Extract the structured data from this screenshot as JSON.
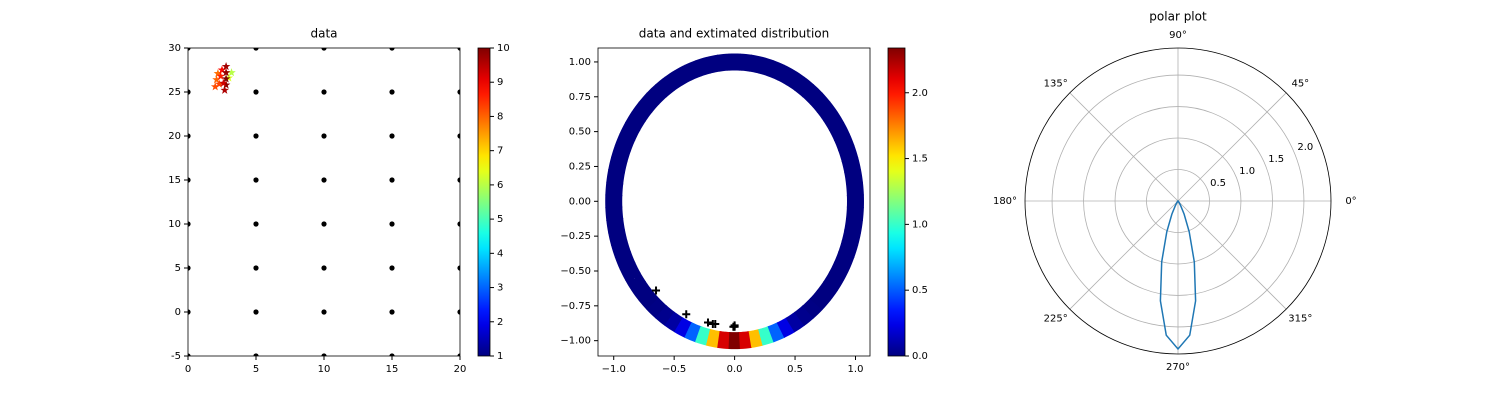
{
  "chart_data": [
    {
      "type": "scatter",
      "title": "data",
      "xlim": [
        0,
        20
      ],
      "ylim": [
        -5,
        30
      ],
      "xticks": [
        0,
        5,
        10,
        15,
        20
      ],
      "yticks": [
        -5,
        0,
        5,
        10,
        15,
        20,
        25,
        30
      ],
      "series": [
        {
          "color": "#000000",
          "marker": "dot",
          "x": [
            0,
            0,
            0,
            0,
            0,
            0,
            0,
            0,
            5,
            5,
            5,
            5,
            5,
            5,
            5,
            5,
            10,
            10,
            10,
            10,
            10,
            10,
            10,
            10,
            15,
            15,
            15,
            15,
            15,
            15,
            15,
            15,
            20,
            20,
            20,
            20,
            20,
            20,
            20,
            20
          ],
          "y": [
            -5,
            0,
            5,
            10,
            15,
            20,
            25,
            30,
            -5,
            0,
            5,
            10,
            15,
            20,
            25,
            30,
            -5,
            0,
            5,
            10,
            15,
            20,
            25,
            30,
            -5,
            0,
            5,
            10,
            15,
            20,
            25,
            30,
            -5,
            0,
            5,
            10,
            15,
            20,
            25,
            30
          ]
        },
        {
          "marker": "star",
          "x": [
            2.0,
            2.1,
            2.2,
            2.3,
            2.4,
            2.5,
            3.2,
            3.0,
            2.7,
            2.8,
            2.8,
            2.8,
            2.8,
            2.6
          ],
          "y": [
            25.6,
            26.4,
            27.1,
            25.9,
            26.8,
            27.5,
            27.2,
            26.6,
            25.2,
            25.8,
            26.5,
            27.2,
            27.9,
            26.0
          ],
          "c": [
            8.2,
            8.0,
            7.9,
            8.3,
            8.6,
            8.8,
            6.0,
            6.3,
            9.6,
            9.9,
            10.0,
            9.8,
            9.7,
            9.3
          ]
        }
      ],
      "colorbar": {
        "colormap": "jet",
        "lim": [
          1,
          10
        ],
        "ticks": [
          1,
          2,
          3,
          4,
          5,
          6,
          7,
          8,
          9,
          10
        ]
      }
    },
    {
      "type": "ring",
      "title": "data and extimated distribution",
      "xlim": [
        -1.13,
        1.12
      ],
      "ylim": [
        -1.11,
        1.1
      ],
      "xticks": [
        {
          "value": -1,
          "label": "−1.0"
        },
        {
          "value": -0.5,
          "label": "−0.5"
        },
        {
          "value": 0,
          "label": "0.0"
        },
        {
          "value": 0.5,
          "label": "0.5"
        },
        {
          "value": 1,
          "label": "1.0"
        }
      ],
      "yticks": [
        {
          "value": -1,
          "label": "−1.00"
        },
        {
          "value": -0.75,
          "label": "−0.75"
        },
        {
          "value": -0.5,
          "label": "−0.50"
        },
        {
          "value": -0.25,
          "label": "−0.25"
        },
        {
          "value": 0,
          "label": "0.00"
        },
        {
          "value": 0.25,
          "label": "0.25"
        },
        {
          "value": 0.5,
          "label": "0.50"
        },
        {
          "value": 0.75,
          "label": "0.75"
        },
        {
          "value": 1,
          "label": "1.00"
        }
      ],
      "ring": {
        "radius": 1,
        "theta": [
          0,
          5,
          10,
          15,
          20,
          25,
          30,
          35,
          40,
          45,
          50,
          55,
          60,
          65,
          70,
          75,
          80,
          85,
          90,
          95,
          100,
          105,
          110,
          115,
          120,
          125,
          130,
          135,
          140,
          145,
          150,
          155,
          160,
          165,
          170,
          175,
          180,
          185,
          190,
          195,
          200,
          205,
          210,
          215,
          220,
          225,
          230,
          235,
          240,
          245,
          250,
          255,
          260,
          265,
          270,
          275,
          280,
          285,
          290,
          295,
          300,
          305,
          310,
          315,
          320,
          325,
          330,
          335,
          340,
          345,
          350,
          355
        ],
        "density": [
          0,
          0,
          0,
          0,
          0,
          0,
          0,
          0,
          0,
          0,
          0,
          0,
          0,
          0,
          0,
          0,
          0,
          0,
          0,
          0,
          0,
          0,
          0,
          0,
          0,
          0,
          0,
          0,
          0,
          0,
          0,
          0,
          0,
          0,
          0,
          0,
          0,
          0,
          0,
          0,
          0,
          0,
          0,
          0,
          0,
          0,
          0.01,
          0.03,
          0.08,
          0.23,
          0.52,
          1.0,
          1.61,
          2.14,
          2.35,
          2.14,
          1.61,
          1.0,
          0.52,
          0.23,
          0.08,
          0.03,
          0.01,
          0,
          0,
          0,
          0,
          0,
          0,
          0,
          0,
          0
        ]
      },
      "series": [
        {
          "color": "#000000",
          "marker": "plus",
          "x": [
            -0.65,
            -0.4,
            -0.22,
            -0.18,
            -0.16,
            0.0,
            0.0,
            -0.01
          ],
          "y": [
            -0.64,
            -0.81,
            -0.87,
            -0.88,
            -0.88,
            -0.89,
            -0.9,
            -0.9
          ]
        }
      ],
      "colorbar": {
        "colormap": "jet",
        "lim": [
          0,
          2.34
        ],
        "ticks": [
          {
            "value": 0,
            "label": "0.0"
          },
          {
            "value": 0.5,
            "label": "0.5"
          },
          {
            "value": 1,
            "label": "1.0"
          },
          {
            "value": 1.5,
            "label": "1.5"
          },
          {
            "value": 2,
            "label": "2.0"
          }
        ]
      }
    },
    {
      "type": "polar",
      "title": "polar plot",
      "grid": true,
      "rlim": [
        0,
        2.43
      ],
      "rticks": [
        {
          "value": 0.5,
          "label": "0.5"
        },
        {
          "value": 1,
          "label": "1.0"
        },
        {
          "value": 1.5,
          "label": "1.5"
        },
        {
          "value": 2,
          "label": "2.0"
        }
      ],
      "thetaticks": [
        {
          "value": 0,
          "label": "0°"
        },
        {
          "value": 45,
          "label": "45°"
        },
        {
          "value": 90,
          "label": "90°"
        },
        {
          "value": 135,
          "label": "135°"
        },
        {
          "value": 180,
          "label": "180°"
        },
        {
          "value": 225,
          "label": "225°"
        },
        {
          "value": 270,
          "label": "270°"
        },
        {
          "value": 315,
          "label": "315°"
        }
      ],
      "series": [
        {
          "color": "#1f77b4",
          "theta": [
            0,
            5,
            10,
            15,
            20,
            25,
            30,
            35,
            40,
            45,
            50,
            55,
            60,
            65,
            70,
            75,
            80,
            85,
            90,
            95,
            100,
            105,
            110,
            115,
            120,
            125,
            130,
            135,
            140,
            145,
            150,
            155,
            160,
            165,
            170,
            175,
            180,
            185,
            190,
            195,
            200,
            205,
            210,
            215,
            220,
            225,
            230,
            235,
            240,
            245,
            250,
            255,
            260,
            265,
            270,
            275,
            280,
            285,
            290,
            295,
            300,
            305,
            310,
            315,
            320,
            325,
            330,
            335,
            340,
            345,
            350,
            355
          ],
          "r": [
            0,
            0,
            0,
            0,
            0,
            0,
            0,
            0,
            0,
            0,
            0,
            0,
            0,
            0,
            0,
            0,
            0,
            0,
            0,
            0,
            0,
            0,
            0,
            0,
            0,
            0,
            0,
            0,
            0,
            0,
            0,
            0,
            0,
            0,
            0,
            0,
            0,
            0,
            0,
            0,
            0,
            0,
            0,
            0,
            0,
            0,
            0.01,
            0.03,
            0.08,
            0.23,
            0.52,
            1.0,
            1.61,
            2.14,
            2.35,
            2.14,
            1.61,
            1.0,
            0.52,
            0.23,
            0.08,
            0.03,
            0.01,
            0,
            0,
            0,
            0,
            0,
            0,
            0,
            0,
            0
          ]
        }
      ]
    }
  ]
}
